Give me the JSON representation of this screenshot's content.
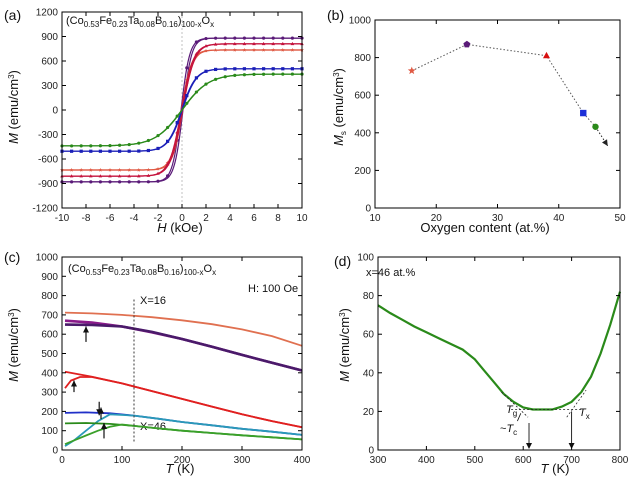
{
  "chart_data": [
    {
      "type": "line",
      "panel_label": "(a)",
      "annotation": {
        "base": "(Co",
        "s1": "0.53",
        "t2": "Fe",
        "s2": "0.23",
        "t3": "Ta",
        "s3": "0.08",
        "t4": "B",
        "s4": "0.16",
        "t5": ")",
        "s5": "100-x",
        "t6": "O",
        "s6": "x"
      },
      "xlabel": {
        "italic": "H",
        "rest": " (kOe)"
      },
      "ylabel": {
        "italic": "M",
        "rest": " (emu/cm",
        "sup": "3",
        "close": ")"
      },
      "xlim": [
        -10,
        10
      ],
      "ylim": [
        -1200,
        1200
      ],
      "xticks": [
        -10,
        -8,
        -6,
        -4,
        -2,
        0,
        2,
        4,
        6,
        8,
        10
      ],
      "yticks": [
        -1200,
        -900,
        -600,
        -300,
        0,
        300,
        600,
        900,
        1200
      ],
      "series": [
        {
          "color": "#5a1a78",
          "marker": "circle",
          "Ms": 880,
          "k": 1.4,
          "hc": 0.08
        },
        {
          "color": "#e05a44",
          "marker": "star",
          "Ms": 735,
          "k": 1.2,
          "hc": 0.06
        },
        {
          "color": "#c4123c",
          "marker": "triangle",
          "Ms": 810,
          "k": 1.0,
          "hc": 0.05
        },
        {
          "color": "#1b1fb8",
          "marker": "square",
          "Ms": 505,
          "k": 0.85,
          "hc": 0.03
        },
        {
          "color": "#2a8a1a",
          "marker": "circle",
          "Ms": 440,
          "k": 0.45,
          "hc": 0.02
        }
      ]
    },
    {
      "type": "scatter",
      "panel_label": "(b)",
      "xlabel": "Oxygen content (at.%)",
      "ylabel": {
        "italic": "M",
        "sub": "s",
        "rest": " (emu/cm",
        "sup": "3",
        "close": ")"
      },
      "xlim": [
        10,
        50
      ],
      "ylim": [
        0,
        1000
      ],
      "xticks": [
        10,
        20,
        30,
        40,
        50
      ],
      "yticks": [
        0,
        200,
        400,
        600,
        800,
        1000
      ],
      "points": [
        {
          "x": 16,
          "y": 730,
          "color": "#e05a44",
          "marker": "star"
        },
        {
          "x": 25,
          "y": 870,
          "color": "#5a1a78",
          "marker": "pentagon"
        },
        {
          "x": 38,
          "y": 810,
          "color": "#d81010",
          "marker": "triangle"
        },
        {
          "x": 44,
          "y": 505,
          "color": "#1b2fd8",
          "marker": "square"
        },
        {
          "x": 46,
          "y": 432,
          "color": "#2a8a1a",
          "marker": "circle"
        }
      ],
      "arrow_to": {
        "x": 48,
        "y": 330
      }
    },
    {
      "type": "line",
      "panel_label": "(c)",
      "annotation": {
        "base": "(Co",
        "s1": "0.53",
        "t2": "Fe",
        "s2": "0.23",
        "t3": "Ta",
        "s3": "0.08",
        "t4": "B",
        "s4": "0.16",
        "t5": ")",
        "s5": "100-x",
        "t6": "O",
        "s6": "x"
      },
      "field_label": "H: 100 Oe",
      "x16_label": "X=16",
      "x46_label": "X=46",
      "xlabel": {
        "italic": "T",
        "rest": " (K)"
      },
      "ylabel": {
        "italic": "M",
        "rest": " (emu/cm",
        "sup": "3",
        "close": ")"
      },
      "xlim": [
        0,
        400
      ],
      "ylim": [
        0,
        1000
      ],
      "xticks": [
        0,
        100,
        200,
        300,
        400
      ],
      "yticks": [
        0,
        100,
        200,
        300,
        400,
        500,
        600,
        700,
        800,
        900,
        1000
      ],
      "marker_T": 120,
      "series": [
        {
          "color": "#e07050",
          "x": [
            5,
            50,
            100,
            150,
            200,
            250,
            300,
            350,
            400
          ],
          "y": [
            712,
            708,
            700,
            688,
            672,
            652,
            625,
            590,
            540
          ]
        },
        {
          "color": "#8a1a8a",
          "x": [
            5,
            50,
            100,
            150,
            200,
            250,
            300,
            350,
            400
          ],
          "y": [
            670,
            660,
            640,
            610,
            575,
            535,
            493,
            452,
            412
          ]
        },
        {
          "color": "#4a1a6a",
          "x": [
            5,
            50,
            100,
            150,
            200,
            250,
            300,
            350,
            400
          ],
          "y": [
            650,
            648,
            640,
            612,
            575,
            535,
            493,
            452,
            412
          ]
        },
        {
          "color": "#e02020",
          "x": [
            5,
            50,
            100,
            150,
            200,
            250,
            300,
            350,
            400
          ],
          "y": [
            405,
            380,
            345,
            305,
            265,
            225,
            185,
            150,
            118
          ]
        },
        {
          "color": "#e02020",
          "x": [
            5,
            15,
            30,
            50,
            100,
            150,
            200,
            250,
            300,
            350,
            400
          ],
          "y": [
            320,
            360,
            378,
            378,
            345,
            305,
            265,
            225,
            185,
            150,
            118
          ]
        },
        {
          "color": "#2030c8",
          "x": [
            5,
            40,
            80,
            120,
            160,
            200,
            250,
            300,
            350,
            400
          ],
          "y": [
            192,
            195,
            190,
            178,
            162,
            145,
            128,
            110,
            95,
            78
          ]
        },
        {
          "color": "#2a9ab8",
          "x": [
            5,
            20,
            40,
            60,
            80,
            120,
            160,
            200,
            250,
            300,
            350,
            400
          ],
          "y": [
            20,
            50,
            100,
            150,
            185,
            178,
            162,
            145,
            128,
            110,
            95,
            78
          ]
        },
        {
          "color": "#2a8a1a",
          "x": [
            5,
            40,
            80,
            120,
            160,
            200,
            250,
            300,
            350,
            400
          ],
          "y": [
            138,
            140,
            135,
            125,
            112,
            100,
            88,
            76,
            66,
            55
          ]
        },
        {
          "color": "#3aa02a",
          "x": [
            5,
            20,
            40,
            60,
            80,
            100,
            120,
            160,
            200,
            250,
            300,
            350,
            400
          ],
          "y": [
            30,
            50,
            75,
            100,
            120,
            132,
            125,
            112,
            100,
            88,
            76,
            66,
            55
          ]
        }
      ],
      "arrows": [
        {
          "x": 40,
          "y_from": 560,
          "y_to": 640
        },
        {
          "x": 20,
          "y_from": 300,
          "y_to": 360
        },
        {
          "x": 62,
          "y_from": 250,
          "y_to": 180
        },
        {
          "x": 65,
          "y_from": 160,
          "y_to": 220
        },
        {
          "x": 70,
          "y_from": 60,
          "y_to": 140
        }
      ]
    },
    {
      "type": "line",
      "panel_label": "(d)",
      "annotation": "x=46 at.%",
      "xlabel": {
        "italic": "T",
        "rest": " (K)"
      },
      "ylabel": {
        "italic": "M",
        "rest": " (emu/cm",
        "sup": "3",
        "close": ")"
      },
      "xlim": [
        300,
        800
      ],
      "ylim": [
        0,
        100
      ],
      "xticks": [
        300,
        400,
        500,
        600,
        700,
        800
      ],
      "yticks": [
        0,
        20,
        40,
        60,
        80,
        100
      ],
      "series": [
        {
          "color": "#2a8a1a",
          "x": [
            300,
            325,
            350,
            375,
            400,
            425,
            450,
            475,
            500,
            520,
            540,
            560,
            580,
            600,
            620,
            640,
            660,
            680,
            700,
            720,
            740,
            760,
            780,
            800
          ],
          "y": [
            75,
            71,
            67.5,
            64,
            61,
            58,
            55,
            52,
            47,
            41,
            35,
            29,
            25,
            22,
            21,
            21,
            21,
            22.5,
            25,
            30,
            38,
            50,
            65,
            82
          ]
        }
      ],
      "Tg": 595,
      "Tc": 612,
      "Tx": 700,
      "tg_label": {
        "base": "T",
        "sub": "g"
      },
      "tc_label": {
        "pre": "~",
        "base": "T",
        "sub": "c"
      },
      "tx_label": {
        "base": "T",
        "sub": "x"
      }
    }
  ]
}
